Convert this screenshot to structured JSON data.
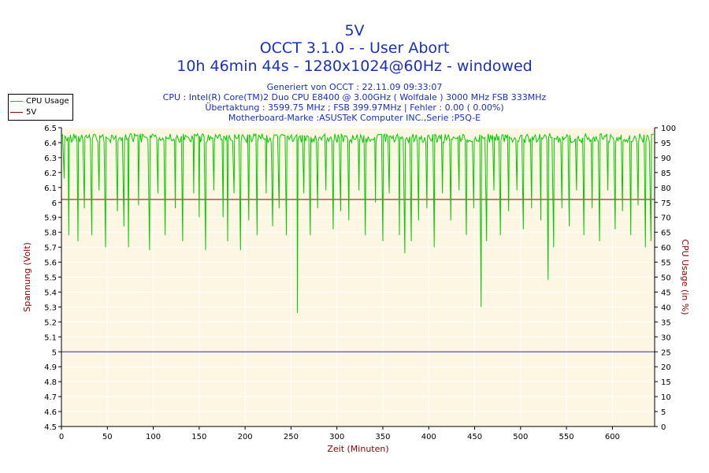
{
  "titles": {
    "line1": "5V",
    "line2": "OCCT 3.1.0 -  - User Abort",
    "line3": "10h 46min 44s - 1280x1024@60Hz - windowed"
  },
  "info": {
    "generated": "Generiert von OCCT : 22.11.09 09:33:07",
    "cpu": "CPU : Intel(R) Core(TM)2 Duo CPU E8400 @ 3.00GHz ( Wolfdale ) 3000 MHz FSB 333MHz",
    "overclock": "Übertaktung : 3599.75 MHz ; FSB 399.97MHz | Fehler : 0.00 ( 0.00%)",
    "motherboard": "Motherboard-Marke :ASUSTeK Computer INC.,Serie :P5Q-E"
  },
  "legend": [
    {
      "label": "CPU Usage",
      "color": "#00cc00"
    },
    {
      "label": "5V",
      "color": "#8b0000"
    }
  ],
  "colors": {
    "plot_bg": "#fdf6e3",
    "grid": "#ffffff",
    "axis": "#000000",
    "title": "#1a2fc4",
    "axis_label": "#8b0000",
    "cpu_line": "#00cc00",
    "volt_line": "#1a2fc4",
    "limit_line": "#8b0000"
  },
  "chart_data": {
    "type": "line",
    "xlabel": "Zeit (Minuten)",
    "ylabel": "Spannung (Volt)",
    "y2label": "CPU Usage (in %)",
    "xlim": [
      0,
      646
    ],
    "ylim": [
      4.5,
      6.5
    ],
    "y2lim": [
      0,
      100
    ],
    "x_ticks": [
      "0",
      "50",
      "100",
      "150",
      "200",
      "250",
      "300",
      "350",
      "400",
      "450",
      "500",
      "550",
      "600"
    ],
    "y_ticks": [
      "4.5",
      "4.6",
      "4.7",
      "4.8",
      "4.9",
      "5",
      "5.1",
      "5.2",
      "5.3",
      "5.4",
      "5.5",
      "5.6",
      "5.7",
      "5.8",
      "5.9",
      "6",
      "6.1",
      "6.2",
      "6.3",
      "6.4",
      "6.5"
    ],
    "y2_ticks": [
      "0",
      "5",
      "10",
      "15",
      "20",
      "25",
      "30",
      "35",
      "40",
      "45",
      "50",
      "55",
      "60",
      "65",
      "70",
      "75",
      "80",
      "85",
      "90",
      "95",
      "100"
    ],
    "series": [
      {
        "name": "5V",
        "axis": "left",
        "x": [
          0,
          646
        ],
        "values": [
          5.0,
          5.0
        ]
      },
      {
        "name": "CPU Usage",
        "axis": "right",
        "note_levels": {
          "high": 98,
          "typical_low": 95
        },
        "dips": [
          {
            "x": 3,
            "v": 83
          },
          {
            "x": 8,
            "v": 64
          },
          {
            "x": 18,
            "v": 62
          },
          {
            "x": 25,
            "v": 73
          },
          {
            "x": 33,
            "v": 64
          },
          {
            "x": 41,
            "v": 79
          },
          {
            "x": 48,
            "v": 60
          },
          {
            "x": 61,
            "v": 72
          },
          {
            "x": 68,
            "v": 67
          },
          {
            "x": 73,
            "v": 60
          },
          {
            "x": 84,
            "v": 74
          },
          {
            "x": 96,
            "v": 59
          },
          {
            "x": 105,
            "v": 78
          },
          {
            "x": 113,
            "v": 64
          },
          {
            "x": 124,
            "v": 73
          },
          {
            "x": 132,
            "v": 62
          },
          {
            "x": 144,
            "v": 78
          },
          {
            "x": 150,
            "v": 70
          },
          {
            "x": 157,
            "v": 59
          },
          {
            "x": 166,
            "v": 79
          },
          {
            "x": 176,
            "v": 70
          },
          {
            "x": 181,
            "v": 62
          },
          {
            "x": 188,
            "v": 78
          },
          {
            "x": 195,
            "v": 59
          },
          {
            "x": 204,
            "v": 69
          },
          {
            "x": 213,
            "v": 64
          },
          {
            "x": 223,
            "v": 78
          },
          {
            "x": 230,
            "v": 67
          },
          {
            "x": 237,
            "v": 73
          },
          {
            "x": 245,
            "v": 64
          },
          {
            "x": 257,
            "v": 38
          },
          {
            "x": 264,
            "v": 78
          },
          {
            "x": 271,
            "v": 64
          },
          {
            "x": 279,
            "v": 73
          },
          {
            "x": 288,
            "v": 79
          },
          {
            "x": 296,
            "v": 66
          },
          {
            "x": 304,
            "v": 72
          },
          {
            "x": 313,
            "v": 69
          },
          {
            "x": 324,
            "v": 79
          },
          {
            "x": 331,
            "v": 64
          },
          {
            "x": 342,
            "v": 75
          },
          {
            "x": 350,
            "v": 62
          },
          {
            "x": 357,
            "v": 78
          },
          {
            "x": 368,
            "v": 64
          },
          {
            "x": 374,
            "v": 58
          },
          {
            "x": 381,
            "v": 62
          },
          {
            "x": 389,
            "v": 69
          },
          {
            "x": 398,
            "v": 73
          },
          {
            "x": 406,
            "v": 60
          },
          {
            "x": 415,
            "v": 78
          },
          {
            "x": 424,
            "v": 69
          },
          {
            "x": 433,
            "v": 79
          },
          {
            "x": 441,
            "v": 64
          },
          {
            "x": 449,
            "v": 73
          },
          {
            "x": 457,
            "v": 40
          },
          {
            "x": 463,
            "v": 62
          },
          {
            "x": 471,
            "v": 79
          },
          {
            "x": 478,
            "v": 64
          },
          {
            "x": 487,
            "v": 72
          },
          {
            "x": 496,
            "v": 79
          },
          {
            "x": 503,
            "v": 66
          },
          {
            "x": 512,
            "v": 73
          },
          {
            "x": 522,
            "v": 69
          },
          {
            "x": 530,
            "v": 49
          },
          {
            "x": 536,
            "v": 60
          },
          {
            "x": 545,
            "v": 73
          },
          {
            "x": 553,
            "v": 67
          },
          {
            "x": 561,
            "v": 79
          },
          {
            "x": 569,
            "v": 64
          },
          {
            "x": 578,
            "v": 73
          },
          {
            "x": 586,
            "v": 62
          },
          {
            "x": 595,
            "v": 79
          },
          {
            "x": 603,
            "v": 66
          },
          {
            "x": 611,
            "v": 72
          },
          {
            "x": 620,
            "v": 64
          },
          {
            "x": 628,
            "v": 74
          },
          {
            "x": 636,
            "v": 60
          },
          {
            "x": 642,
            "v": 62
          }
        ]
      }
    ],
    "limit_line": {
      "axis": "left",
      "value": 6.02
    },
    "grid": true,
    "legend_position": "top-left"
  }
}
